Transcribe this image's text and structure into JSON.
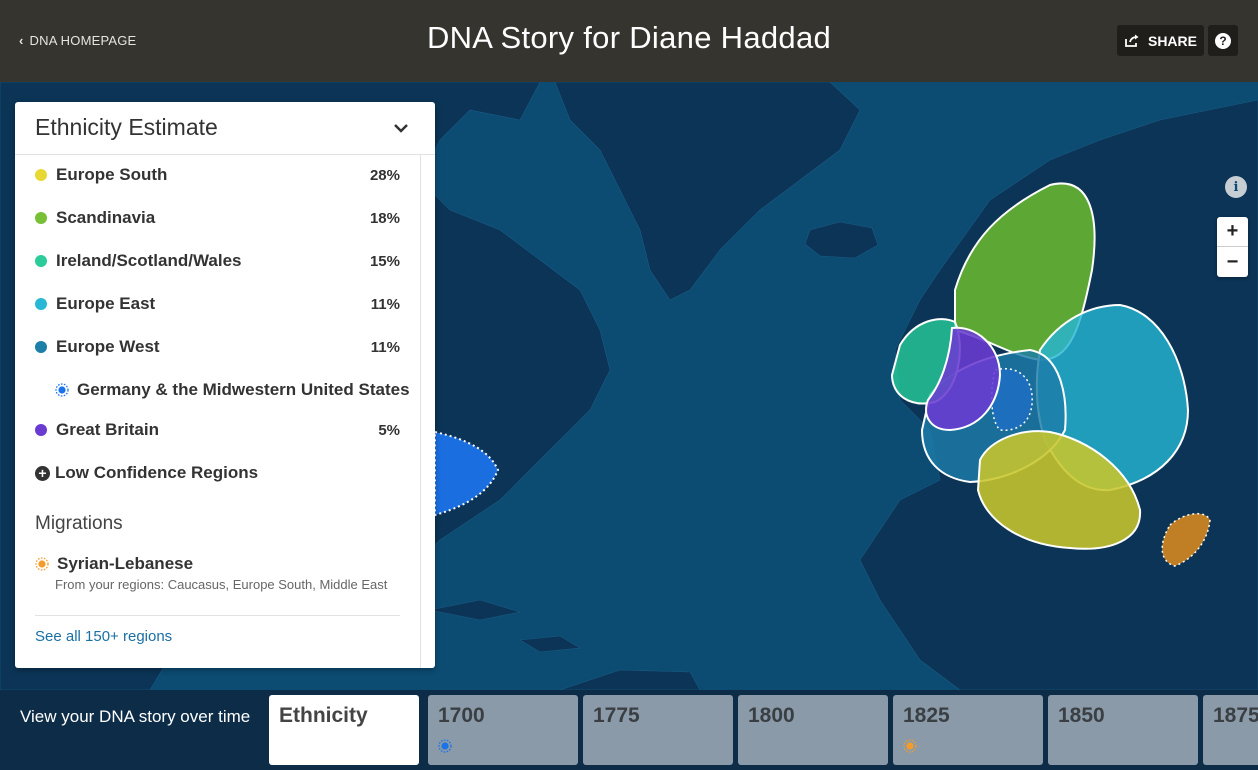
{
  "header": {
    "back_label": "DNA HOMEPAGE",
    "title": "DNA Story for Diane Haddad",
    "share_label": "SHARE",
    "help_label": "?"
  },
  "map": {
    "info_label": "i",
    "zoom_in_label": "+",
    "zoom_out_label": "−",
    "ocean_color": "#0c4b72",
    "land_color": "#0b3456"
  },
  "panel": {
    "title": "Ethnicity Estimate",
    "regions": [
      {
        "name": "Europe South",
        "percent": "28%",
        "color": "#e8d833"
      },
      {
        "name": "Scandinavia",
        "percent": "18%",
        "color": "#77c035"
      },
      {
        "name": "Ireland/Scotland/Wales",
        "percent": "15%",
        "color": "#2ccc9a"
      },
      {
        "name": "Europe East",
        "percent": "11%",
        "color": "#28b8d6"
      },
      {
        "name": "Europe West",
        "percent": "11%",
        "color": "#1b7fa8"
      },
      {
        "name": "Great Britain",
        "percent": "5%",
        "color": "#6a3bd1"
      }
    ],
    "community": {
      "name": "Germany & the Midwestern United States",
      "color": "#1a73e8"
    },
    "low_confidence_label": "Low Confidence Regions",
    "migrations_title": "Migrations",
    "migration": {
      "name": "Syrian-Lebanese",
      "from": "From your regions: Caucasus, Europe South, Middle East",
      "color": "#f39c2b"
    },
    "see_all_label": "See all 150+ regions"
  },
  "timeline": {
    "label": "View your DNA story over time",
    "tabs": [
      {
        "label": "Ethnicity",
        "active": true
      },
      {
        "label": "1700",
        "marker": "community-marker"
      },
      {
        "label": "1775"
      },
      {
        "label": "1800"
      },
      {
        "label": "1825",
        "marker": "migration-marker"
      },
      {
        "label": "1850"
      },
      {
        "label": "1875"
      }
    ]
  }
}
